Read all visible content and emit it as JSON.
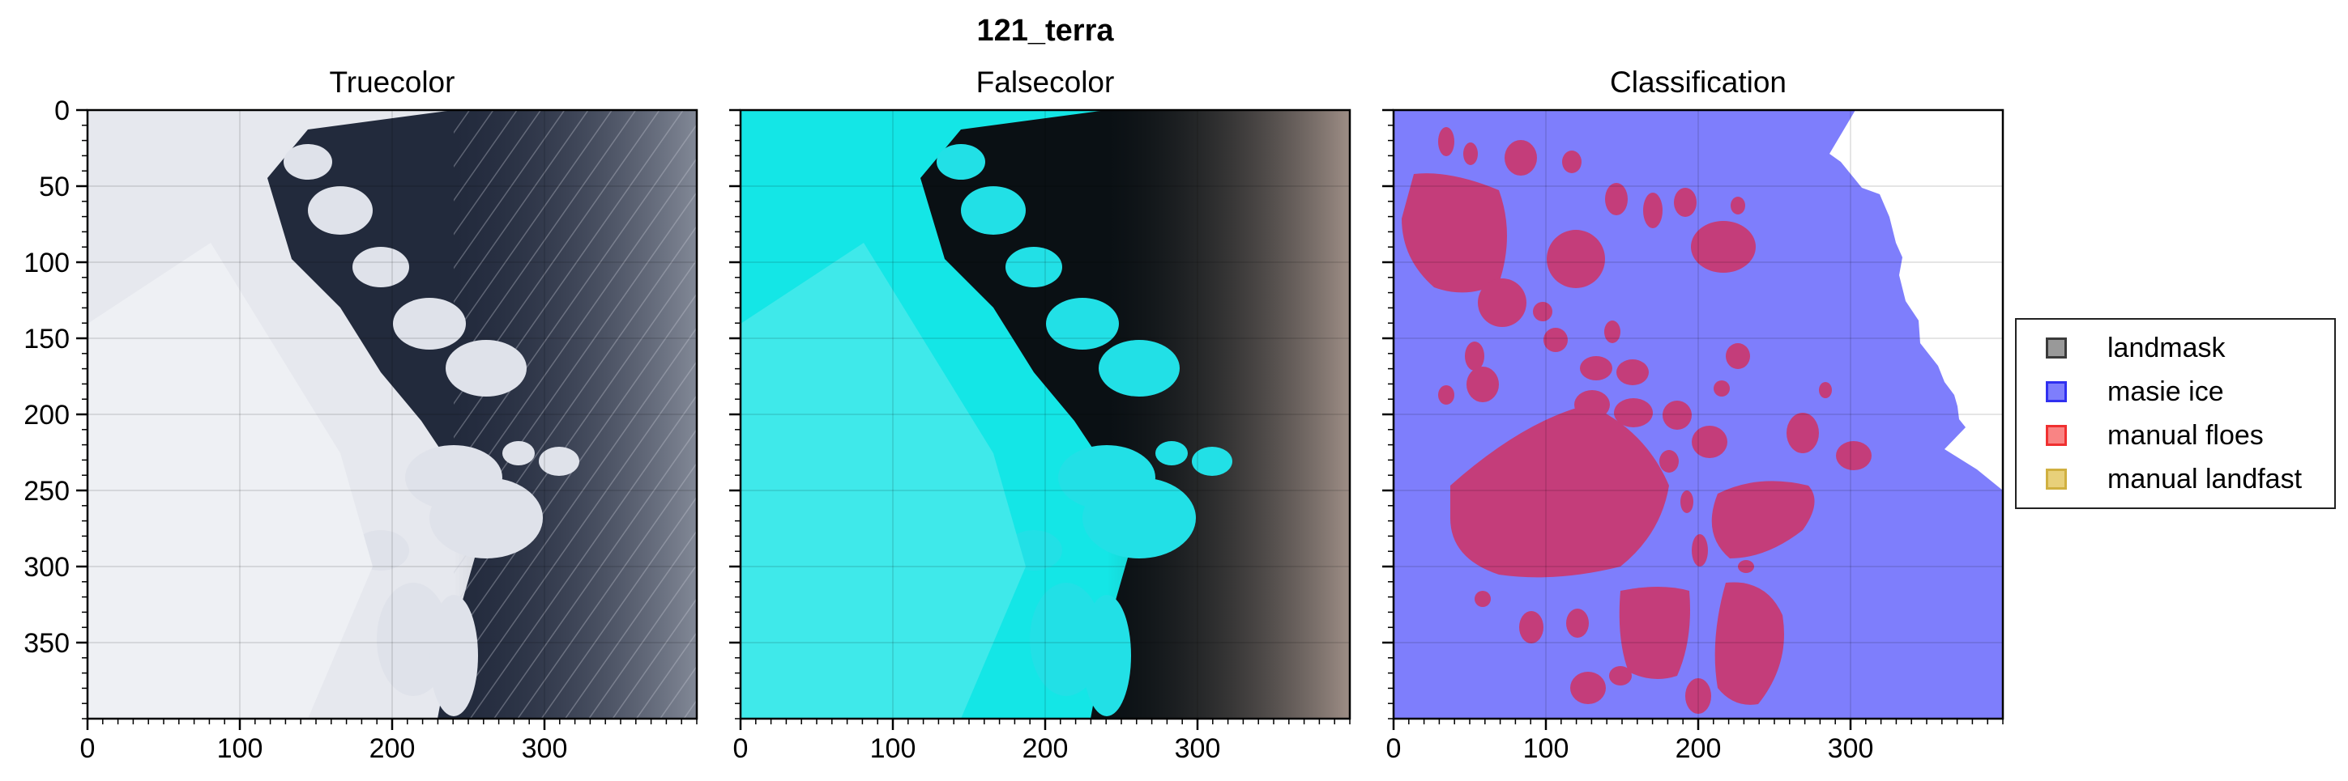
{
  "figure": {
    "title": "121_terra"
  },
  "chart_data": [
    {
      "type": "image",
      "title": "Truecolor",
      "xlim": [
        0,
        400
      ],
      "ylim": [
        400,
        0
      ],
      "xticks": [
        0,
        100,
        200,
        300
      ],
      "yticks": [
        0,
        50,
        100,
        150,
        200,
        250,
        300,
        350
      ],
      "grid": true,
      "content": "true-color satellite image of sea ice floes and open water"
    },
    {
      "type": "image",
      "title": "Falsecolor",
      "xlim": [
        0,
        400
      ],
      "ylim": [
        400,
        0
      ],
      "xticks": [
        0,
        100,
        200,
        300
      ],
      "yticks": [
        0,
        50,
        100,
        150,
        200,
        250,
        300,
        350
      ],
      "grid": true,
      "content": "false-color satellite image with cyan ice and dark water"
    },
    {
      "type": "image",
      "title": "Classification",
      "xlim": [
        0,
        400
      ],
      "ylim": [
        400,
        0
      ],
      "xticks": [
        0,
        100,
        200,
        300
      ],
      "yticks": [
        0,
        50,
        100,
        150,
        200,
        250,
        300,
        350
      ],
      "grid": true,
      "content": "classification mask: masie ice region with manual floes",
      "legend": {
        "placement": "right",
        "entries": [
          {
            "label": "landmask",
            "color": "#808080"
          },
          {
            "label": "masie ice",
            "color": "#7e7efc"
          },
          {
            "label": "manual floes",
            "color": "#f98484"
          },
          {
            "label": "manual landfast",
            "color": "#e8d07a"
          }
        ]
      }
    }
  ],
  "colors": {
    "masie_ice": "#7e7efc",
    "floe_overlap": "#c43d7a",
    "falsecolor_ice": "#14e6e6",
    "truecolor_ice": "#e6e8ee",
    "water_dark": "#22283a"
  }
}
